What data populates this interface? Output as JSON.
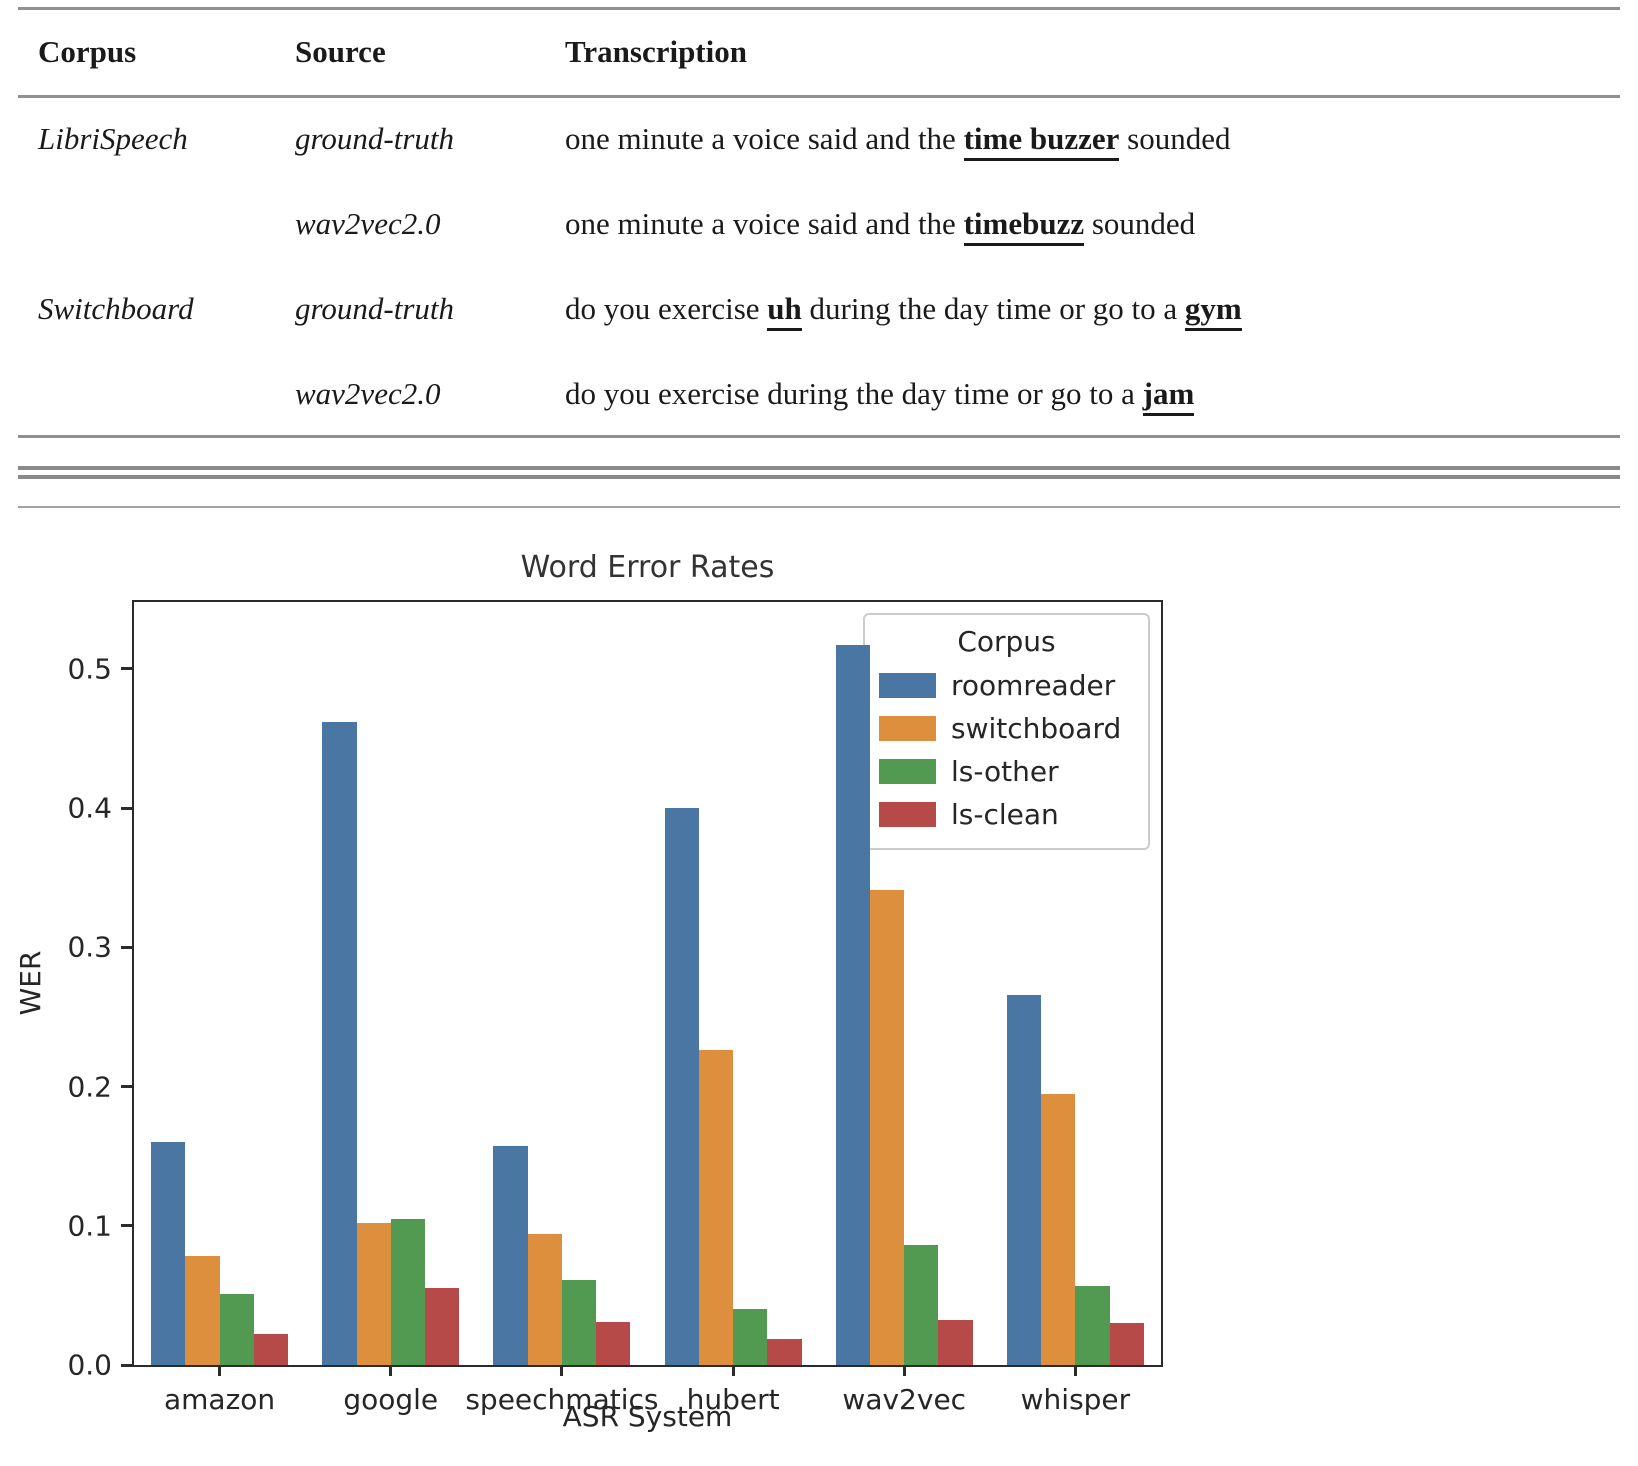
{
  "table": {
    "headers": [
      "Corpus",
      "Source",
      "Transcription"
    ],
    "rows": [
      {
        "corpus": "LibriSpeech",
        "source": "ground-truth",
        "segments": [
          {
            "t": "one minute a voice said and the "
          },
          {
            "t": "time buzzer",
            "hl": true
          },
          {
            "t": " sounded"
          }
        ]
      },
      {
        "corpus": "",
        "source": "wav2vec2.0",
        "segments": [
          {
            "t": "one minute a voice said and the "
          },
          {
            "t": "timebuzz",
            "hl": true
          },
          {
            "t": " sounded"
          }
        ]
      },
      {
        "corpus": "Switchboard",
        "source": "ground-truth",
        "segments": [
          {
            "t": "do you exercise "
          },
          {
            "t": "uh",
            "hl": true
          },
          {
            "t": " during the day time or go to a "
          },
          {
            "t": "gym",
            "hl": true
          }
        ]
      },
      {
        "corpus": "",
        "source": "wav2vec2.0",
        "segments": [
          {
            "t": "do you exercise during the day time or go to a "
          },
          {
            "t": "jam",
            "hl": true
          }
        ]
      }
    ]
  },
  "chart_data": {
    "type": "bar",
    "title": "Word Error Rates",
    "xlabel": "ASR System",
    "ylabel": "WER",
    "categories": [
      "amazon",
      "google",
      "speechmatics",
      "hubert",
      "wav2vec",
      "whisper"
    ],
    "series": [
      {
        "name": "roomreader",
        "color": "#4a76a3",
        "values": [
          0.16,
          0.462,
          0.157,
          0.4,
          0.517,
          0.266
        ]
      },
      {
        "name": "switchboard",
        "color": "#de8f3e",
        "values": [
          0.078,
          0.102,
          0.094,
          0.226,
          0.341,
          0.195
        ]
      },
      {
        "name": "ls-other",
        "color": "#529a52",
        "values": [
          0.051,
          0.105,
          0.061,
          0.04,
          0.086,
          0.057
        ]
      },
      {
        "name": "ls-clean",
        "color": "#b54a48",
        "values": [
          0.022,
          0.055,
          0.031,
          0.019,
          0.032,
          0.03
        ]
      }
    ],
    "legend_title": "Corpus",
    "legend_position": "upper right",
    "ylim": [
      0,
      0.548
    ],
    "yticks": [
      0.0,
      0.1,
      0.2,
      0.3,
      0.4,
      0.5
    ],
    "grid": false
  },
  "colors": {
    "rule_gray": "#909090",
    "axis_dark": "#2b2b2b"
  }
}
